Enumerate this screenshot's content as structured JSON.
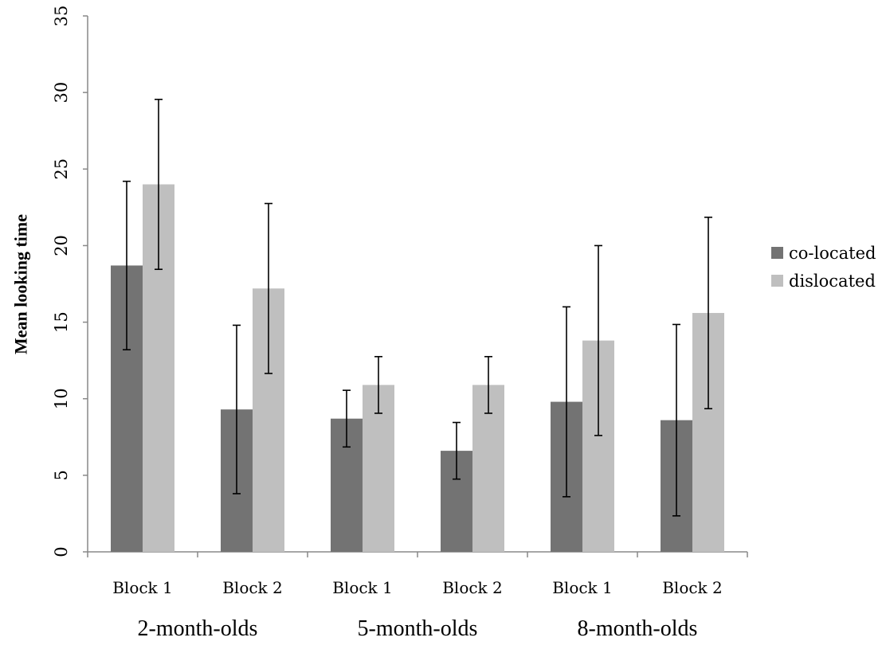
{
  "chart_data": {
    "type": "bar",
    "ylabel": "Mean looking time",
    "xlabel": "",
    "ylim": [
      0,
      35
    ],
    "yticks": [
      0,
      5,
      10,
      15,
      20,
      25,
      30,
      35
    ],
    "categories": [
      "Block 1",
      "Block 2",
      "Block 1",
      "Block 2",
      "Block 1",
      "Block 2"
    ],
    "groups": [
      "2-month-olds",
      "5-month-olds",
      "8-month-olds"
    ],
    "series": [
      {
        "name": "co-located",
        "color": "#737373",
        "values": [
          18.7,
          9.3,
          8.7,
          6.6,
          9.8,
          8.6
        ],
        "error": [
          5.5,
          5.5,
          1.85,
          1.85,
          6.2,
          6.25
        ]
      },
      {
        "name": "dislocated",
        "color": "#bfbfbf",
        "values": [
          24.0,
          17.2,
          10.9,
          10.9,
          13.8,
          15.6
        ],
        "error": [
          5.55,
          5.55,
          1.85,
          1.85,
          6.2,
          6.25
        ]
      }
    ],
    "legend_position": "right",
    "grid": false
  }
}
